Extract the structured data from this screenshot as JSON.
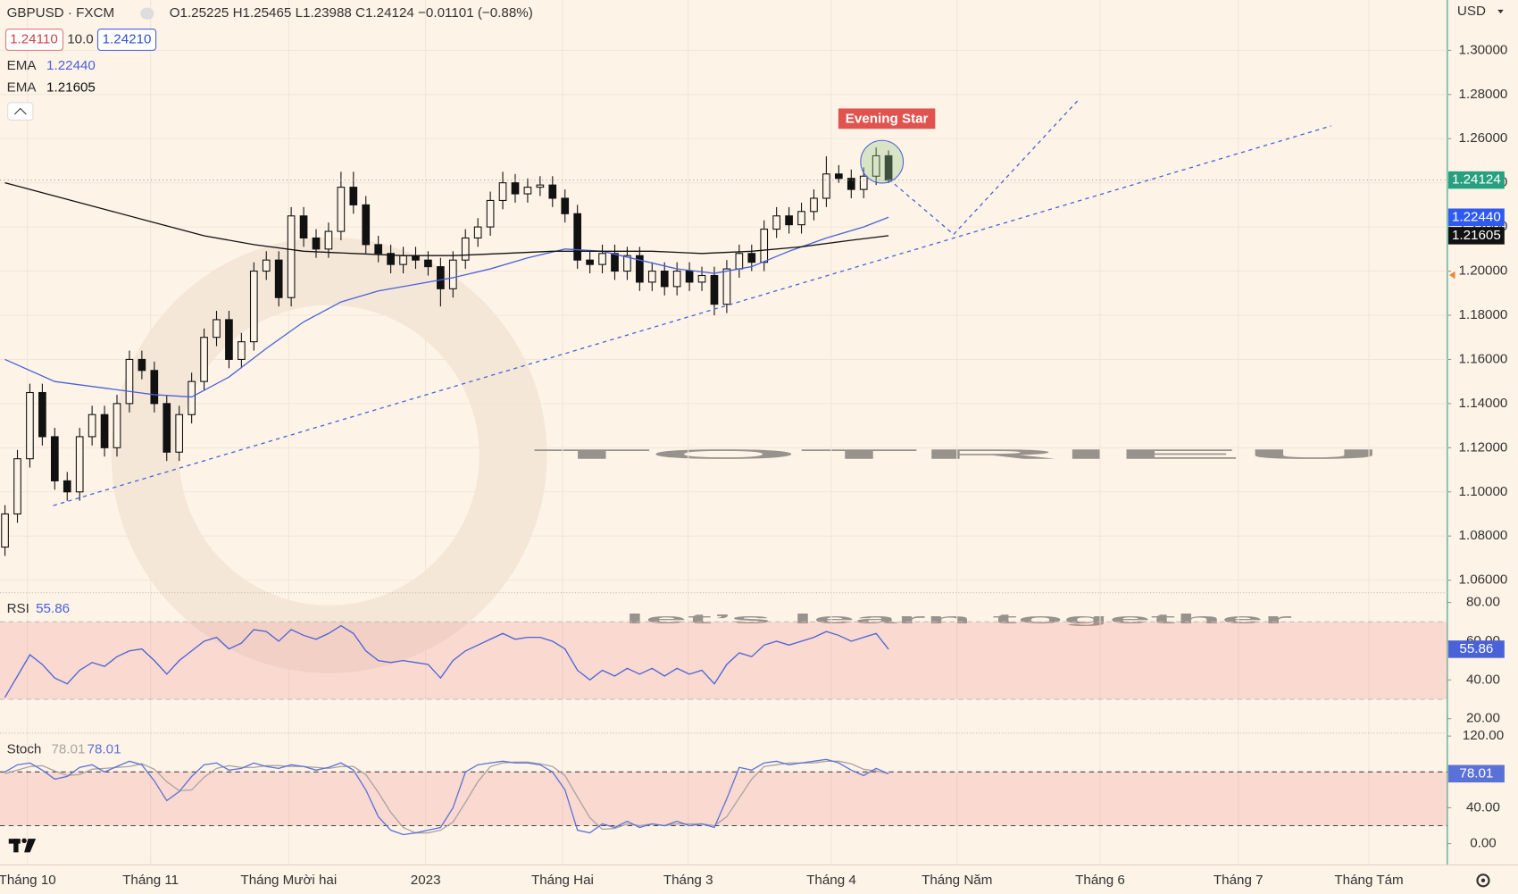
{
  "header": {
    "symbol": "GBPUSD · FXCM",
    "ohlc": "O1.25225 H1.25465 L1.23988 C1.24124 −0.01101 (−0.88%)",
    "sell": "1.24110",
    "spread": "10.0",
    "buy": "1.24210",
    "currency": "USD"
  },
  "watermark": {
    "title": "TOTRIEU",
    "tagline": "let’s learn together"
  },
  "chart_data": [
    {
      "type": "candlestick",
      "annotation": "Evening Star",
      "grid": true,
      "up_color": "#fdf3e7",
      "down_color": "#111111",
      "xlim": [
        -0.4,
        115.9
      ],
      "xticks": [
        {
          "value": 1.8,
          "label": "Tháng 10"
        },
        {
          "value": 11.7,
          "label": "Tháng 11"
        },
        {
          "value": 22.8,
          "label": "Tháng Mười hai"
        },
        {
          "value": 33.8,
          "label": "2023"
        },
        {
          "value": 44.8,
          "label": "Tháng Hai"
        },
        {
          "value": 54.9,
          "label": "Tháng 3"
        },
        {
          "value": 66.4,
          "label": "Tháng 4"
        },
        {
          "value": 76.5,
          "label": "Tháng Năm"
        },
        {
          "value": 88,
          "label": "Tháng 6"
        },
        {
          "value": 99.1,
          "label": "Tháng 7"
        },
        {
          "value": 109.6,
          "label": "Tháng Tám"
        }
      ],
      "ylim": [
        1.0543,
        1.3228
      ],
      "yticks": [
        {
          "value": 1.06,
          "label": "1.06000"
        },
        {
          "value": 1.08,
          "label": "1.08000"
        },
        {
          "value": 1.1,
          "label": "1.10000"
        },
        {
          "value": 1.12,
          "label": "1.12000"
        },
        {
          "value": 1.14,
          "label": "1.14000"
        },
        {
          "value": 1.16,
          "label": "1.16000"
        },
        {
          "value": 1.18,
          "label": "1.18000"
        },
        {
          "value": 1.2,
          "label": "1.20000"
        },
        {
          "value": 1.22,
          "label": "1.22000"
        },
        {
          "value": 1.24,
          "label": "1.24000"
        },
        {
          "value": 1.26,
          "label": "1.26000"
        },
        {
          "value": 1.28,
          "label": "1.28000"
        },
        {
          "value": 1.3,
          "label": "1.30000"
        }
      ],
      "series": [
        {
          "color": "#26a07e",
          "open": [
            1.075,
            1.09,
            1.115,
            1.145,
            1.125,
            1.105,
            1.1,
            1.125,
            1.135,
            1.12,
            1.14,
            1.16,
            1.155,
            1.14,
            1.118,
            1.135,
            1.15,
            1.17,
            1.178,
            1.16,
            1.168,
            1.2,
            1.205,
            1.188,
            1.225,
            1.215,
            1.21,
            1.218,
            1.238,
            1.23,
            1.212,
            1.208,
            1.203,
            1.207,
            1.205,
            1.202,
            1.192,
            1.205,
            1.215,
            1.22,
            1.232,
            1.24,
            1.235,
            1.238,
            1.239,
            1.233,
            1.226,
            1.205,
            1.203,
            1.208,
            1.2,
            1.207,
            1.195,
            1.2,
            1.193,
            1.2,
            1.195,
            1.198,
            1.185,
            1.201,
            1.208,
            1.204,
            1.219,
            1.225,
            1.221,
            1.227,
            1.233,
            1.244,
            1.242,
            1.237,
            1.243,
            1.25225
          ],
          "high": [
            1.094,
            1.119,
            1.149,
            1.149,
            1.129,
            1.109,
            1.129,
            1.139,
            1.139,
            1.144,
            1.164,
            1.164,
            1.159,
            1.144,
            1.139,
            1.154,
            1.174,
            1.182,
            1.182,
            1.172,
            1.204,
            1.209,
            1.209,
            1.229,
            1.229,
            1.219,
            1.222,
            1.245,
            1.245,
            1.234,
            1.216,
            1.212,
            1.211,
            1.211,
            1.209,
            1.206,
            1.209,
            1.219,
            1.224,
            1.236,
            1.245,
            1.244,
            1.242,
            1.243,
            1.243,
            1.237,
            1.23,
            1.209,
            1.212,
            1.212,
            1.211,
            1.211,
            1.204,
            1.204,
            1.204,
            1.204,
            1.202,
            1.202,
            1.205,
            1.212,
            1.212,
            1.223,
            1.229,
            1.229,
            1.231,
            1.237,
            1.252,
            1.248,
            1.246,
            1.247,
            1.256,
            1.25465
          ],
          "low": [
            1.071,
            1.086,
            1.111,
            1.121,
            1.101,
            1.096,
            1.096,
            1.121,
            1.116,
            1.116,
            1.136,
            1.151,
            1.136,
            1.114,
            1.114,
            1.131,
            1.146,
            1.166,
            1.156,
            1.156,
            1.164,
            1.196,
            1.184,
            1.184,
            1.211,
            1.206,
            1.206,
            1.214,
            1.226,
            1.208,
            1.204,
            1.199,
            1.199,
            1.201,
            1.198,
            1.184,
            1.188,
            1.201,
            1.211,
            1.216,
            1.228,
            1.231,
            1.231,
            1.234,
            1.229,
            1.222,
            1.201,
            1.199,
            1.199,
            1.196,
            1.196,
            1.191,
            1.191,
            1.189,
            1.189,
            1.191,
            1.191,
            1.18,
            1.181,
            1.197,
            1.2,
            1.2,
            1.215,
            1.217,
            1.217,
            1.223,
            1.229,
            1.24,
            1.233,
            1.233,
            1.239,
            1.23988
          ],
          "close": [
            1.09,
            1.115,
            1.145,
            1.125,
            1.105,
            1.1,
            1.125,
            1.135,
            1.12,
            1.14,
            1.16,
            1.155,
            1.14,
            1.118,
            1.135,
            1.15,
            1.17,
            1.178,
            1.16,
            1.168,
            1.2,
            1.205,
            1.188,
            1.225,
            1.215,
            1.21,
            1.218,
            1.238,
            1.23,
            1.212,
            1.208,
            1.203,
            1.207,
            1.205,
            1.202,
            1.192,
            1.205,
            1.215,
            1.22,
            1.232,
            1.24,
            1.235,
            1.238,
            1.239,
            1.233,
            1.226,
            1.205,
            1.203,
            1.208,
            1.2,
            1.207,
            1.195,
            1.2,
            1.193,
            1.2,
            1.195,
            1.198,
            1.185,
            1.201,
            1.208,
            1.204,
            1.219,
            1.225,
            1.221,
            1.227,
            1.233,
            1.244,
            1.242,
            1.237,
            1.243,
            1.25225,
            1.24124
          ]
        }
      ],
      "lines": [
        {
          "name": "EMA",
          "color": "#4a62d8",
          "last_label": "1.22440",
          "x": [
            0,
            4,
            8,
            12,
            15,
            18,
            21,
            24,
            27,
            30,
            33,
            36,
            39,
            42,
            45,
            48,
            51,
            54,
            57,
            60,
            63,
            66,
            69,
            71
          ],
          "values": [
            1.16,
            1.15,
            1.147,
            1.144,
            1.143,
            1.152,
            1.165,
            1.177,
            1.186,
            1.191,
            1.194,
            1.197,
            1.201,
            1.206,
            1.21,
            1.209,
            1.205,
            1.201,
            1.199,
            1.202,
            1.209,
            1.215,
            1.22,
            1.2244
          ]
        },
        {
          "name": "EMA",
          "color": "#111111",
          "last_label": "1.21605",
          "x": [
            0,
            4,
            8,
            12,
            16,
            20,
            24,
            28,
            32,
            36,
            40,
            44,
            48,
            52,
            56,
            60,
            64,
            68,
            71
          ],
          "values": [
            1.24,
            1.234,
            1.228,
            1.222,
            1.216,
            1.212,
            1.209,
            1.208,
            1.207,
            1.207,
            1.208,
            1.209,
            1.209,
            1.209,
            1.208,
            1.209,
            1.211,
            1.214,
            1.21605
          ]
        }
      ]
    },
    {
      "type": "line",
      "title": "RSI",
      "band": [
        30,
        70
      ],
      "ylim": [
        13.5,
        85
      ],
      "yticks": [
        {
          "value": 20,
          "label": "20.00"
        },
        {
          "value": 40,
          "label": "40.00"
        },
        {
          "value": 60,
          "label": "60.00"
        },
        {
          "value": 80,
          "label": "80.00"
        }
      ],
      "series": [
        {
          "color": "#4a62d8",
          "values": [
            31,
            42,
            53,
            48,
            41,
            38,
            45,
            49,
            47,
            52,
            55,
            56,
            50,
            43,
            50,
            55,
            60,
            62,
            56,
            59,
            66,
            65,
            60,
            66,
            63,
            61,
            64,
            68,
            64,
            55,
            50,
            49,
            50,
            49,
            48,
            41,
            50,
            55,
            58,
            61,
            64,
            61,
            62,
            62,
            60,
            56,
            45,
            40,
            45,
            42,
            46,
            43,
            46,
            42,
            46,
            43,
            45,
            38,
            48,
            54,
            52,
            58,
            60,
            58,
            60,
            62,
            65,
            63,
            60,
            62,
            64,
            55.86
          ]
        }
      ]
    },
    {
      "type": "line",
      "title": "Stoch",
      "band": [
        20,
        80
      ],
      "ylim": [
        -23.8,
        123.2
      ],
      "yticks": [
        {
          "value": 0,
          "label": "0.00"
        },
        {
          "value": 40,
          "label": "40.00"
        },
        {
          "value": 80,
          "label": "80.00"
        },
        {
          "value": 120,
          "label": "120.00"
        }
      ],
      "series": [
        {
          "color": "#a9a3a3",
          "values": [
            78,
            82,
            86,
            87,
            81,
            76,
            77,
            83,
            84,
            85,
            86,
            89,
            83,
            69,
            59,
            60,
            74,
            84,
            87,
            85,
            85,
            87,
            87,
            86,
            86,
            85,
            84,
            86,
            86,
            77,
            57,
            35,
            18,
            12,
            12,
            15,
            24,
            46,
            69,
            86,
            90,
            91,
            91,
            89,
            86,
            76,
            52,
            29,
            16,
            17,
            22,
            20,
            22,
            20,
            22,
            22,
            22,
            20,
            30,
            51,
            72,
            86,
            88,
            90,
            90,
            90,
            92,
            92,
            89,
            83,
            81,
            78.01
          ]
        },
        {
          "color": "#5a72d8",
          "values": [
            80,
            88,
            90,
            82,
            72,
            75,
            85,
            88,
            80,
            86,
            92,
            88,
            70,
            48,
            58,
            75,
            88,
            90,
            82,
            84,
            90,
            86,
            84,
            88,
            86,
            82,
            85,
            90,
            82,
            60,
            30,
            15,
            10,
            12,
            15,
            18,
            40,
            80,
            88,
            90,
            92,
            90,
            90,
            88,
            80,
            60,
            15,
            12,
            22,
            18,
            25,
            18,
            22,
            20,
            25,
            20,
            22,
            18,
            50,
            85,
            82,
            90,
            92,
            88,
            90,
            92,
            94,
            90,
            82,
            76,
            84,
            78.01
          ]
        }
      ]
    }
  ]
}
